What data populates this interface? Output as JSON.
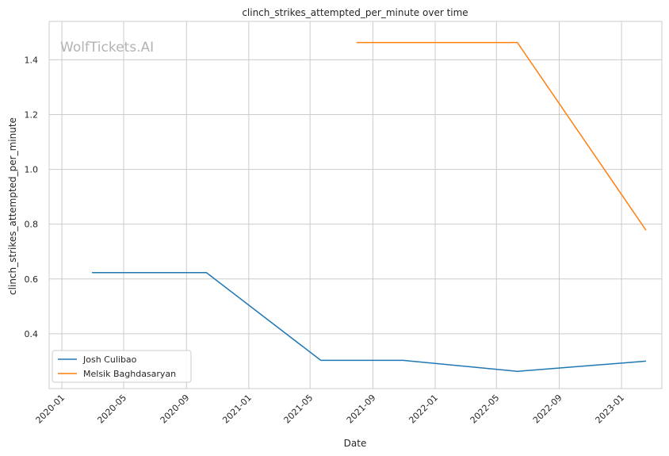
{
  "chart_data": {
    "type": "line",
    "title": "clinch_strikes_attempted_per_minute over time",
    "xlabel": "Date",
    "ylabel": "clinch_strikes_attempted_per_minute",
    "watermark": "WolfTickets.AI",
    "x_ticks": [
      "2020-01",
      "2020-05",
      "2020-09",
      "2021-01",
      "2021-05",
      "2021-09",
      "2022-01",
      "2022-05",
      "2022-09",
      "2023-01"
    ],
    "y_ticks": [
      "0.4",
      "0.6",
      "0.8",
      "1.0",
      "1.2",
      "1.4"
    ],
    "ylim": [
      0.2,
      1.54
    ],
    "xlim": [
      "2019-12-07",
      "2023-03-21"
    ],
    "grid": true,
    "legend_position": "lower-left",
    "series": [
      {
        "name": "Josh Culibao",
        "color": "#1f77b4",
        "points": [
          {
            "x": "2020-02-29",
            "y": 0.623
          },
          {
            "x": "2020-10-10",
            "y": 0.623
          },
          {
            "x": "2021-05-22",
            "y": 0.303
          },
          {
            "x": "2021-10-30",
            "y": 0.303
          },
          {
            "x": "2022-06-11",
            "y": 0.263
          },
          {
            "x": "2023-02-18",
            "y": 0.3
          }
        ]
      },
      {
        "name": "Melsik Baghdasaryan",
        "color": "#ff7f0e",
        "points": [
          {
            "x": "2021-07-31",
            "y": 1.463
          },
          {
            "x": "2022-06-11",
            "y": 1.463
          },
          {
            "x": "2023-02-18",
            "y": 0.778
          }
        ]
      }
    ]
  }
}
